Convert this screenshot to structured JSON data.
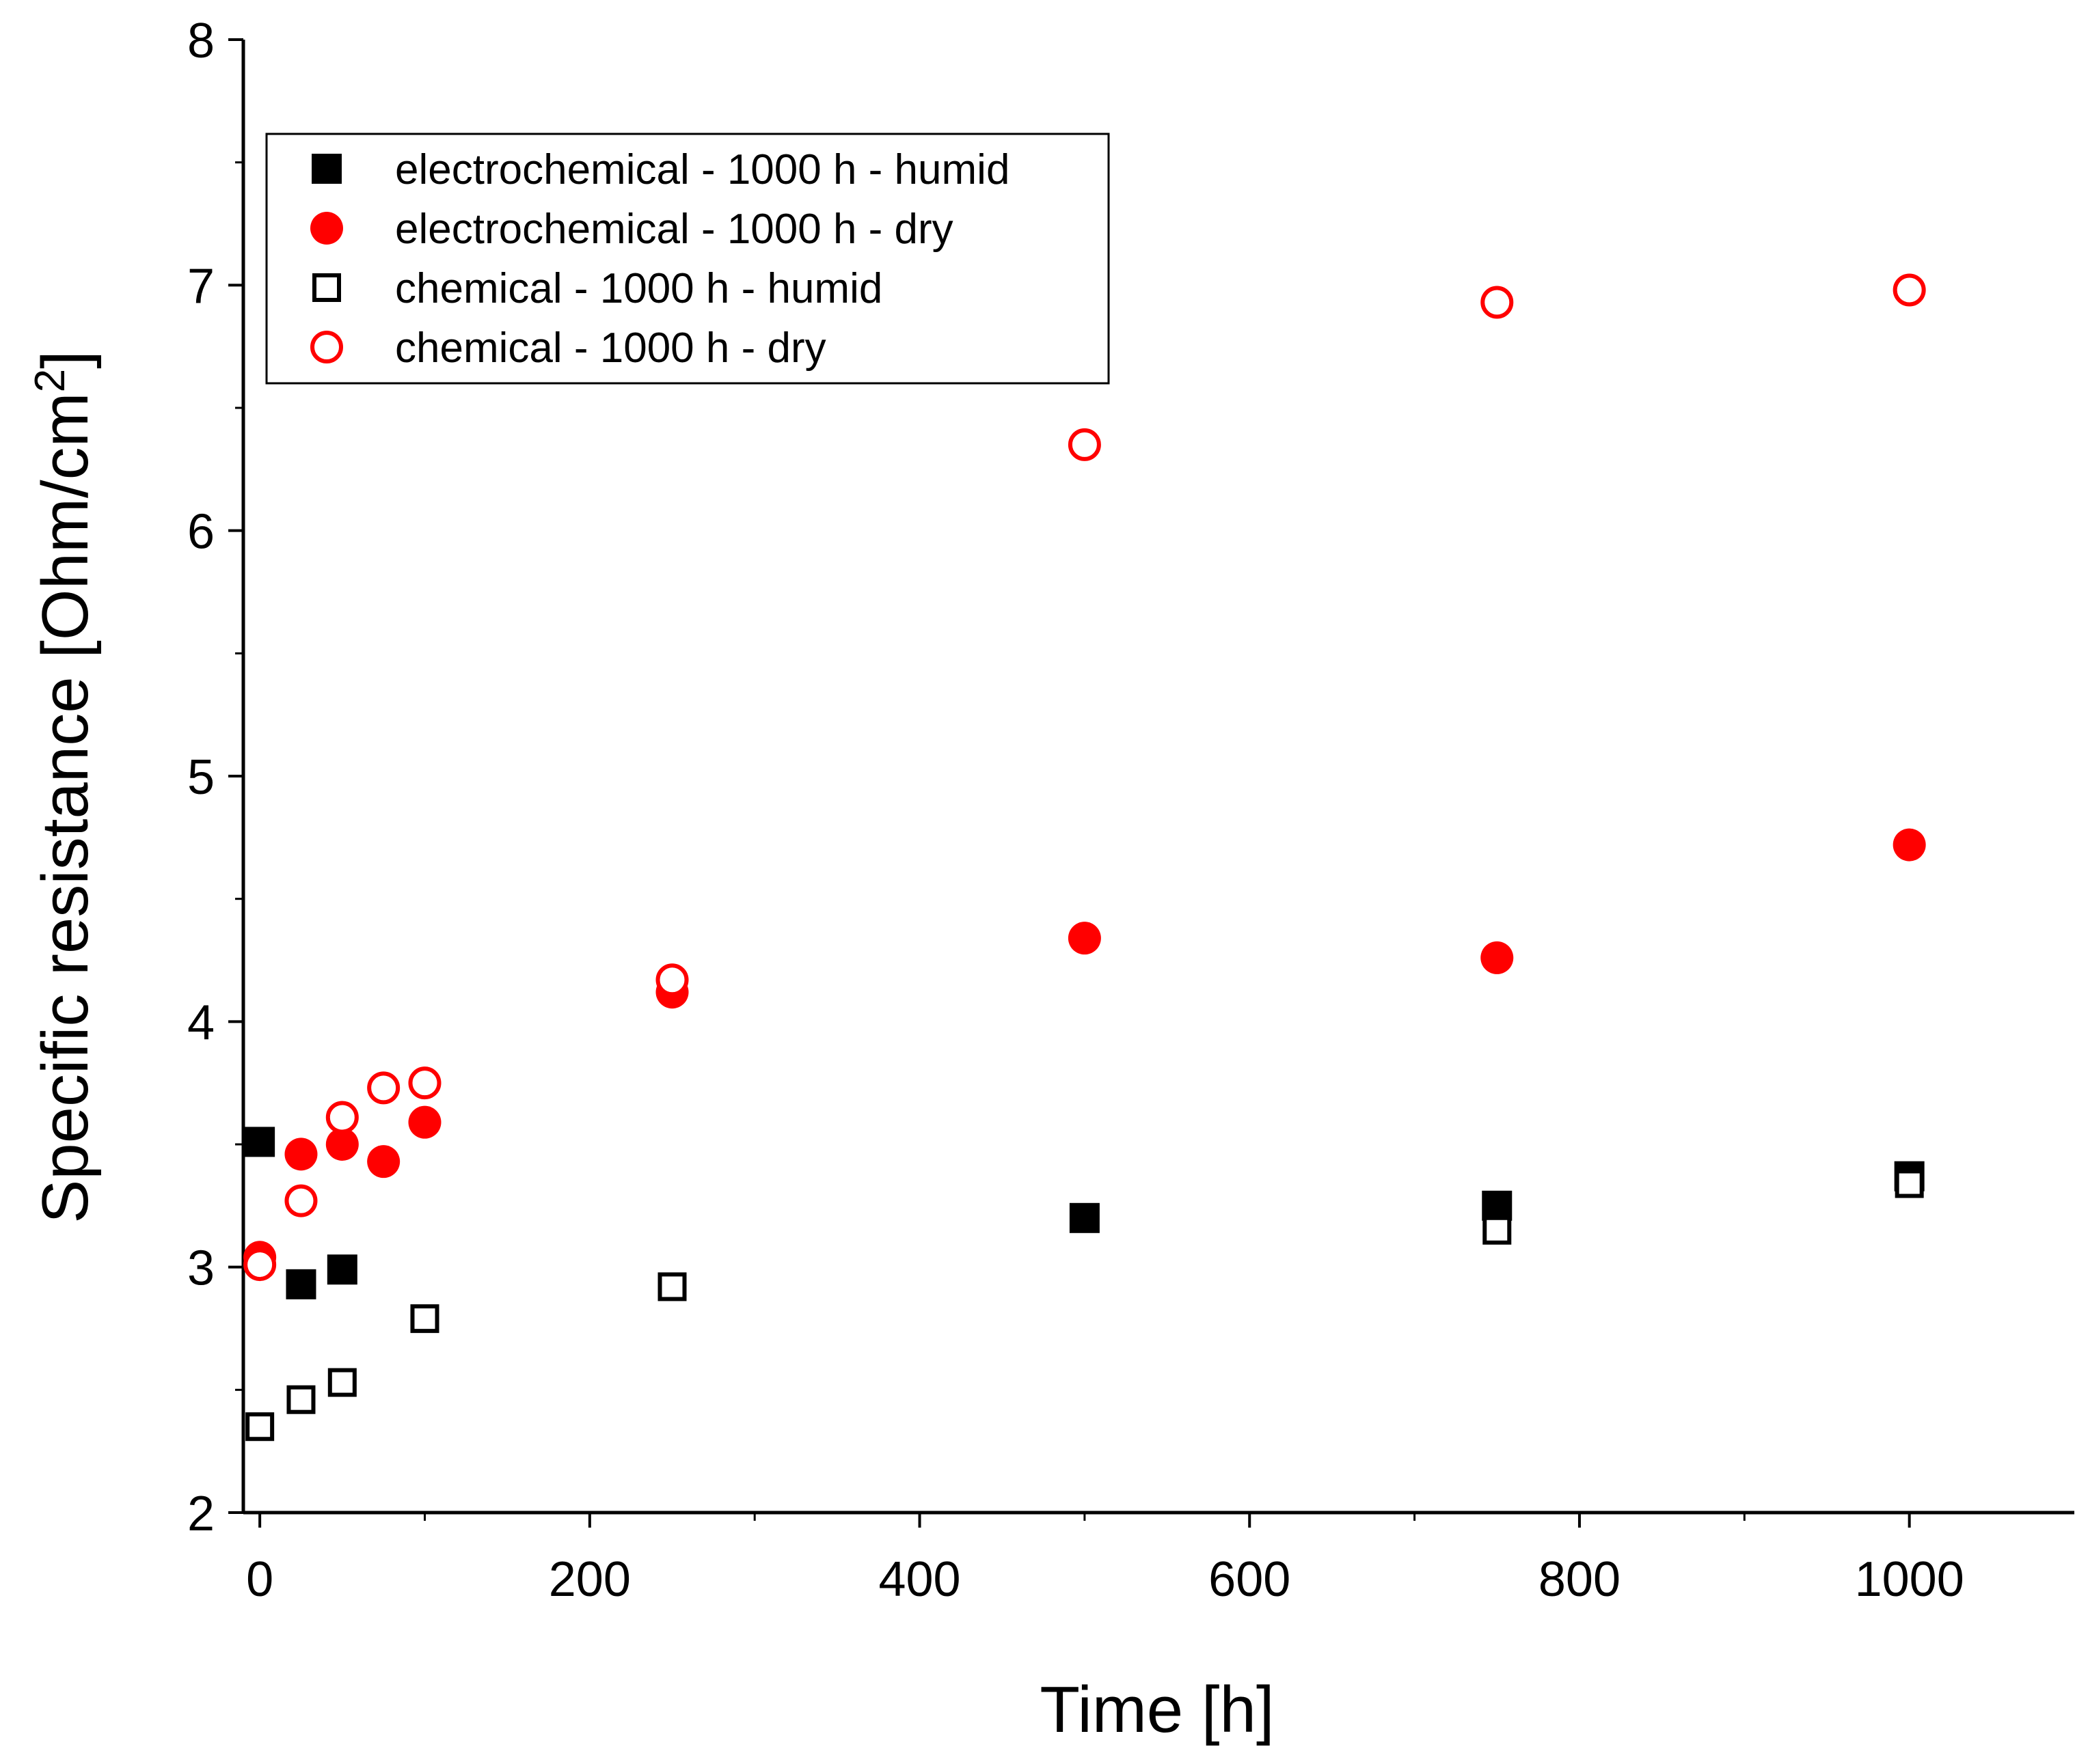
{
  "chart_data": {
    "type": "scatter",
    "title": "",
    "xlabel": "Time [h]",
    "ylabel": "Specific resistance [Ohm/cm",
    "ylabel_superscript": "2",
    "ylabel_close": "]",
    "xlim": [
      -10,
      1100
    ],
    "ylim": [
      2,
      8
    ],
    "x_ticks": [
      0,
      200,
      400,
      600,
      800,
      1000
    ],
    "x_tick_labels": [
      "0",
      "200",
      "400",
      "600",
      "800",
      "1000"
    ],
    "y_ticks": [
      2,
      3,
      4,
      5,
      6,
      7,
      8
    ],
    "y_tick_labels": [
      "2",
      "3",
      "4",
      "5",
      "6",
      "7",
      "8"
    ],
    "grid": false,
    "legend_position": "top-left",
    "series": [
      {
        "name": "electrochemical - 1000 h - humid",
        "marker": "square",
        "filled": true,
        "color": "#000000",
        "x": [
          0,
          25,
          50,
          500,
          750,
          1000
        ],
        "y": [
          3.51,
          2.93,
          2.99,
          3.2,
          3.25,
          3.37
        ]
      },
      {
        "name": "electrochemical - 1000 h - dry",
        "marker": "circle",
        "filled": true,
        "color": "#ff0000",
        "x": [
          0,
          25,
          50,
          75,
          100,
          250,
          500,
          750,
          1000
        ],
        "y": [
          3.04,
          3.46,
          3.5,
          3.43,
          3.59,
          4.12,
          4.34,
          4.26,
          4.72
        ]
      },
      {
        "name": "chemical - 1000 h - humid",
        "marker": "square",
        "filled": false,
        "color": "#000000",
        "x": [
          0,
          25,
          50,
          100,
          250,
          750,
          1000
        ],
        "y": [
          2.35,
          2.46,
          2.53,
          2.79,
          2.92,
          3.15,
          3.34
        ]
      },
      {
        "name": "chemical - 1000 h - dry",
        "marker": "circle",
        "filled": false,
        "color": "#ff0000",
        "x": [
          0,
          25,
          50,
          75,
          100,
          250,
          500,
          750,
          1000
        ],
        "y": [
          3.01,
          3.27,
          3.61,
          3.73,
          3.75,
          4.17,
          6.35,
          6.93,
          6.98
        ]
      }
    ]
  }
}
